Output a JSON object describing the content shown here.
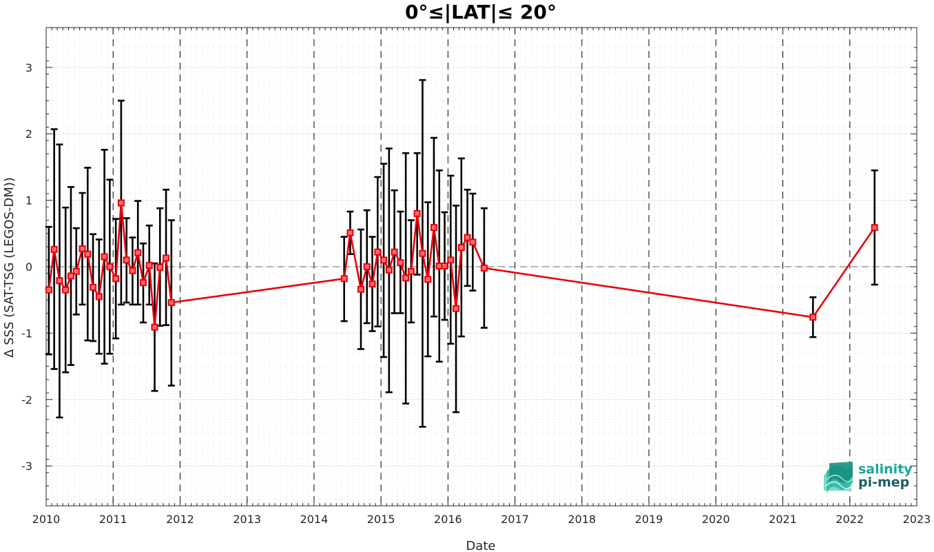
{
  "chart_data": {
    "type": "line",
    "title": "0°≤|LAT|≤ 20°",
    "xlabel": "Date",
    "ylabel": "Δ SSS (SAT-TSG (LEGOS-DM))",
    "xlim": [
      2010,
      2023
    ],
    "ylim": [
      -3.6,
      3.6
    ],
    "x_ticks": [
      "2010",
      "2011",
      "2012",
      "2013",
      "2014",
      "2015",
      "2016",
      "2017",
      "2018",
      "2019",
      "2020",
      "2021",
      "2022",
      "2023"
    ],
    "y_ticks": [
      "-3",
      "-2",
      "-1",
      "0",
      "1",
      "2",
      "3"
    ],
    "grid": true,
    "series": [
      {
        "color": "#e8000b",
        "error_color": "#000000",
        "points": [
          {
            "x": 2010.04,
            "y": -0.35,
            "lo": -1.32,
            "hi": 0.6
          },
          {
            "x": 2010.12,
            "y": 0.26,
            "lo": -1.54,
            "hi": 2.07
          },
          {
            "x": 2010.2,
            "y": -0.21,
            "lo": -2.27,
            "hi": 1.84
          },
          {
            "x": 2010.29,
            "y": -0.35,
            "lo": -1.59,
            "hi": 0.89
          },
          {
            "x": 2010.37,
            "y": -0.14,
            "lo": -1.48,
            "hi": 1.2
          },
          {
            "x": 2010.45,
            "y": -0.07,
            "lo": -0.72,
            "hi": 0.58
          },
          {
            "x": 2010.54,
            "y": 0.27,
            "lo": -0.57,
            "hi": 1.11
          },
          {
            "x": 2010.62,
            "y": 0.19,
            "lo": -1.11,
            "hi": 1.49
          },
          {
            "x": 2010.7,
            "y": -0.31,
            "lo": -1.12,
            "hi": 0.49
          },
          {
            "x": 2010.79,
            "y": -0.45,
            "lo": -1.31,
            "hi": 0.41
          },
          {
            "x": 2010.87,
            "y": 0.15,
            "lo": -1.46,
            "hi": 1.76
          },
          {
            "x": 2010.95,
            "y": 0.0,
            "lo": -1.31,
            "hi": 1.31
          },
          {
            "x": 2011.04,
            "y": -0.18,
            "lo": -1.08,
            "hi": 0.72
          },
          {
            "x": 2011.12,
            "y": 0.96,
            "lo": -0.57,
            "hi": 2.5
          },
          {
            "x": 2011.2,
            "y": 0.1,
            "lo": -0.54,
            "hi": 0.73
          },
          {
            "x": 2011.29,
            "y": -0.06,
            "lo": -0.57,
            "hi": 0.44
          },
          {
            "x": 2011.37,
            "y": 0.21,
            "lo": -0.57,
            "hi": 0.99
          },
          {
            "x": 2011.45,
            "y": -0.24,
            "lo": -0.84,
            "hi": 0.35
          },
          {
            "x": 2011.54,
            "y": 0.02,
            "lo": -0.57,
            "hi": 0.62
          },
          {
            "x": 2011.62,
            "y": -0.91,
            "lo": -1.87,
            "hi": 0.05
          },
          {
            "x": 2011.7,
            "y": -0.01,
            "lo": -0.89,
            "hi": 0.88
          },
          {
            "x": 2011.79,
            "y": 0.13,
            "lo": -0.88,
            "hi": 1.16
          },
          {
            "x": 2011.87,
            "y": -0.54,
            "lo": -1.79,
            "hi": 0.7
          },
          {
            "x": 2014.45,
            "y": -0.18,
            "lo": -0.82,
            "hi": 0.45
          },
          {
            "x": 2014.54,
            "y": 0.51,
            "lo": 0.19,
            "hi": 0.83
          },
          {
            "x": 2014.7,
            "y": -0.34,
            "lo": -1.24,
            "hi": 0.56
          },
          {
            "x": 2014.79,
            "y": 0.0,
            "lo": -0.85,
            "hi": 0.85
          },
          {
            "x": 2014.87,
            "y": -0.26,
            "lo": -0.97,
            "hi": 0.45
          },
          {
            "x": 2014.95,
            "y": 0.22,
            "lo": -0.9,
            "hi": 1.35
          },
          {
            "x": 2015.04,
            "y": 0.1,
            "lo": -1.36,
            "hi": 1.55
          },
          {
            "x": 2015.12,
            "y": -0.05,
            "lo": -1.89,
            "hi": 1.78
          },
          {
            "x": 2015.2,
            "y": 0.22,
            "lo": -0.7,
            "hi": 1.15
          },
          {
            "x": 2015.29,
            "y": 0.06,
            "lo": -0.7,
            "hi": 0.83
          },
          {
            "x": 2015.37,
            "y": -0.17,
            "lo": -2.06,
            "hi": 1.71
          },
          {
            "x": 2015.45,
            "y": -0.07,
            "lo": -0.84,
            "hi": 0.7
          },
          {
            "x": 2015.54,
            "y": 0.8,
            "lo": -0.12,
            "hi": 1.71
          },
          {
            "x": 2015.62,
            "y": 0.2,
            "lo": -2.41,
            "hi": 2.81
          },
          {
            "x": 2015.7,
            "y": -0.19,
            "lo": -1.35,
            "hi": 0.97
          },
          {
            "x": 2015.79,
            "y": 0.59,
            "lo": -0.75,
            "hi": 1.94
          },
          {
            "x": 2015.87,
            "y": 0.01,
            "lo": -1.43,
            "hi": 1.45
          },
          {
            "x": 2015.95,
            "y": 0.01,
            "lo": -0.8,
            "hi": 0.82
          },
          {
            "x": 2016.04,
            "y": 0.1,
            "lo": -1.16,
            "hi": 1.37
          },
          {
            "x": 2016.12,
            "y": -0.63,
            "lo": -2.19,
            "hi": 0.92
          },
          {
            "x": 2016.2,
            "y": 0.29,
            "lo": -1.05,
            "hi": 1.63
          },
          {
            "x": 2016.29,
            "y": 0.44,
            "lo": -0.29,
            "hi": 1.16
          },
          {
            "x": 2016.37,
            "y": 0.37,
            "lo": -0.36,
            "hi": 1.1
          },
          {
            "x": 2016.54,
            "y": -0.02,
            "lo": -0.92,
            "hi": 0.88
          },
          {
            "x": 2021.45,
            "y": -0.76,
            "lo": -1.06,
            "hi": -0.46
          },
          {
            "x": 2022.37,
            "y": 0.59,
            "lo": -0.27,
            "hi": 1.45
          }
        ]
      }
    ]
  },
  "logo": {
    "line1": "salinity",
    "line2": "pi-mep",
    "color1": "#1aa89a",
    "color2": "#1d5f64"
  }
}
